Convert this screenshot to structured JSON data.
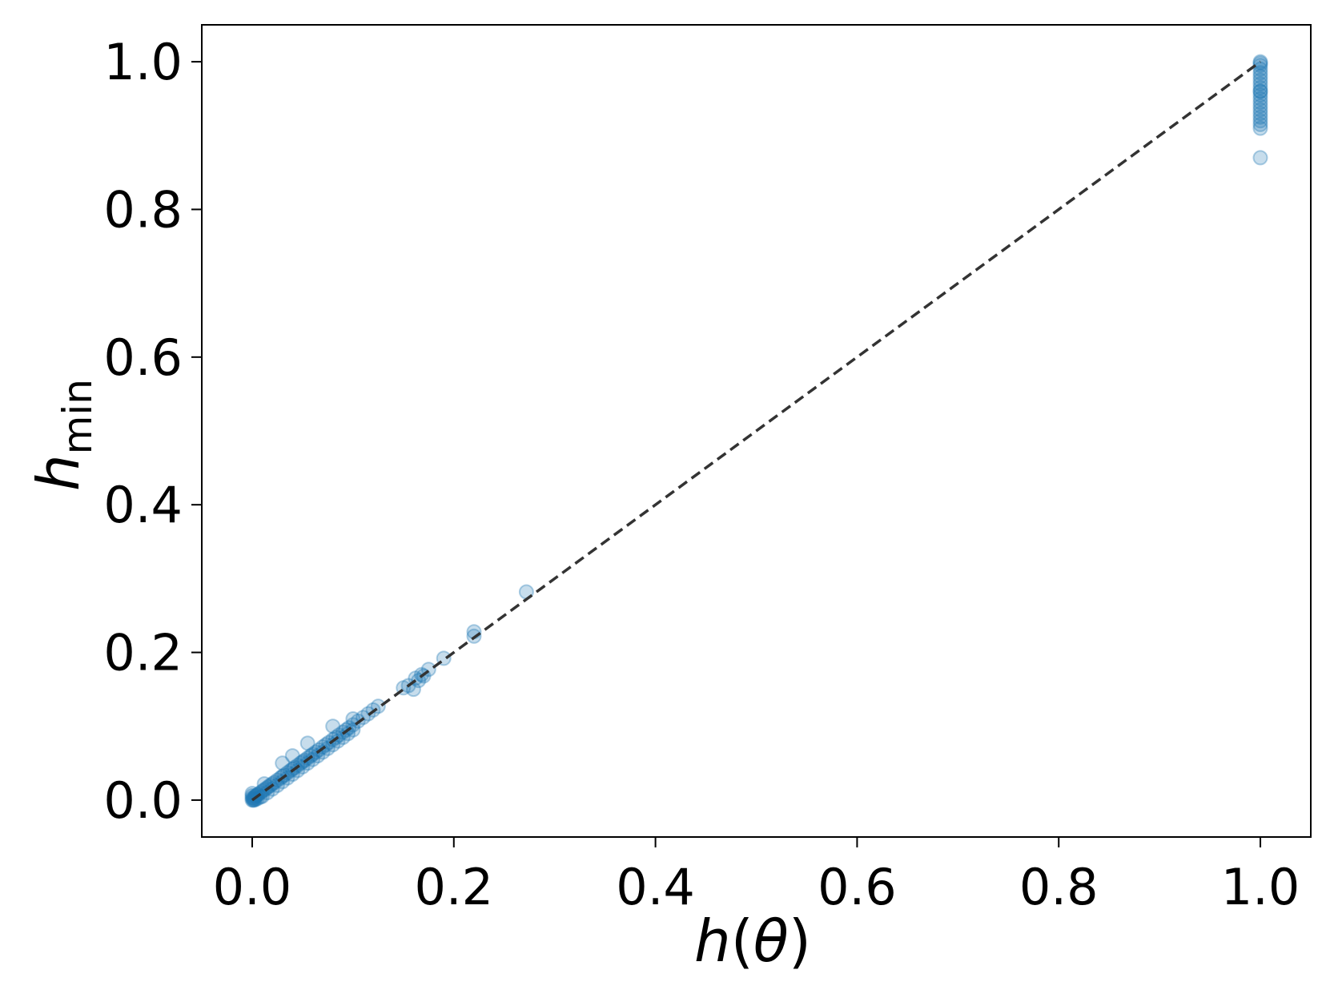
{
  "chart_data": {
    "type": "scatter",
    "title": "",
    "xlabel": {
      "pre": "h",
      "paren_open": "(",
      "var": "θ",
      "paren_close": ")"
    },
    "ylabel": {
      "base": "h",
      "sub": "min"
    },
    "xlim": [
      -0.05,
      1.05
    ],
    "ylim": [
      -0.05,
      1.05
    ],
    "xticks": [
      0.0,
      0.2,
      0.4,
      0.6,
      0.8,
      1.0
    ],
    "yticks": [
      0.0,
      0.2,
      0.4,
      0.6,
      0.8,
      1.0
    ],
    "xtick_labels": [
      "0.0",
      "0.2",
      "0.4",
      "0.6",
      "0.8",
      "1.0"
    ],
    "ytick_labels": [
      "0.0",
      "0.2",
      "0.4",
      "0.6",
      "0.8",
      "1.0"
    ],
    "grid": false,
    "legend": "none",
    "colors": {
      "points": "#1f77b4",
      "reference_line": "#333333",
      "axes": "#000000"
    },
    "point_alpha": 0.25,
    "reference_line": {
      "style": "dashed",
      "x": [
        0.0,
        1.0
      ],
      "y": [
        0.0,
        1.0
      ]
    },
    "series": [
      {
        "x": [
          0.0,
          0.001,
          0.002,
          0.003,
          0.004,
          0.005,
          0.006,
          0.008,
          0.01,
          0.012,
          0.014,
          0.016,
          0.018,
          0.02,
          0.022,
          0.025,
          0.028,
          0.03,
          0.032,
          0.035,
          0.038,
          0.04,
          0.042,
          0.045,
          0.048,
          0.05,
          0.052,
          0.055,
          0.058,
          0.06,
          0.063,
          0.066,
          0.07,
          0.073,
          0.076,
          0.08,
          0.083,
          0.086,
          0.09,
          0.093,
          0.096,
          0.1,
          0.105,
          0.11,
          0.115,
          0.12,
          0.125,
          0.15,
          0.155,
          0.16,
          0.162,
          0.165,
          0.168,
          0.17,
          0.175,
          0.19,
          0.22,
          0.22,
          0.272,
          0.01,
          0.015,
          0.02,
          0.025,
          0.03,
          0.035,
          0.04,
          0.045,
          0.05,
          0.055,
          0.06,
          0.065,
          0.07,
          0.075,
          0.08,
          0.085,
          0.09,
          0.095,
          0.1,
          0.03,
          0.04,
          0.055,
          0.08,
          0.1,
          0.012,
          0.008,
          0.005,
          0.003,
          0.002,
          0.001,
          0.0,
          0.0,
          0.0,
          1.0,
          1.0,
          1.0,
          1.0,
          1.0,
          1.0,
          1.0,
          1.0,
          1.0,
          1.0,
          1.0,
          1.0,
          1.0,
          1.0,
          1.0,
          1.0,
          1.0,
          1.0,
          1.0,
          1.0,
          1.0,
          1.0
        ],
        "y": [
          0.0,
          0.002,
          0.003,
          0.005,
          0.006,
          0.007,
          0.008,
          0.01,
          0.012,
          0.014,
          0.016,
          0.018,
          0.02,
          0.022,
          0.024,
          0.027,
          0.03,
          0.032,
          0.034,
          0.037,
          0.04,
          0.042,
          0.044,
          0.047,
          0.05,
          0.052,
          0.054,
          0.057,
          0.06,
          0.062,
          0.065,
          0.068,
          0.072,
          0.075,
          0.078,
          0.082,
          0.085,
          0.088,
          0.092,
          0.095,
          0.098,
          0.102,
          0.107,
          0.112,
          0.117,
          0.122,
          0.127,
          0.152,
          0.155,
          0.15,
          0.165,
          0.162,
          0.17,
          0.168,
          0.177,
          0.192,
          0.222,
          0.228,
          0.282,
          0.005,
          0.01,
          0.015,
          0.02,
          0.025,
          0.03,
          0.035,
          0.04,
          0.045,
          0.05,
          0.055,
          0.06,
          0.065,
          0.07,
          0.075,
          0.08,
          0.085,
          0.09,
          0.095,
          0.05,
          0.06,
          0.077,
          0.1,
          0.11,
          0.022,
          0.004,
          0.002,
          0.001,
          0.0,
          0.0,
          0.003,
          0.006,
          0.009,
          1.0,
          0.998,
          0.995,
          0.99,
          0.985,
          0.98,
          0.975,
          0.97,
          0.965,
          0.96,
          0.955,
          0.95,
          0.945,
          0.94,
          0.935,
          0.93,
          0.925,
          0.92,
          0.915,
          0.91,
          0.87,
          0.96
        ]
      }
    ]
  }
}
